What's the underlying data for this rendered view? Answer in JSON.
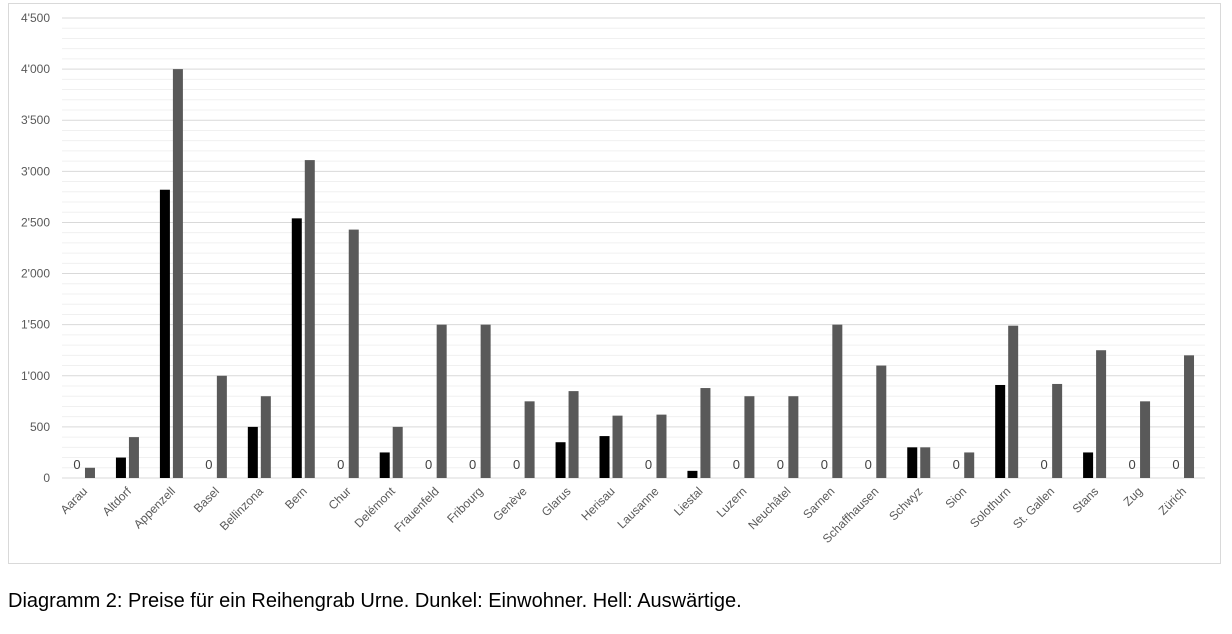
{
  "chart_data": {
    "type": "bar",
    "title": "",
    "xlabel": "",
    "ylabel": "",
    "ylim": [
      0,
      4500
    ],
    "y_major_step": 500,
    "y_minor_step": 100,
    "grid": true,
    "legend": "none",
    "y_tick_labels": [
      "0",
      "500",
      "1'000",
      "1'500",
      "2'000",
      "2'500",
      "3'000",
      "3'500",
      "4'000",
      "4'500"
    ],
    "categories": [
      "Aarau",
      "Altdorf",
      "Appenzell",
      "Basel",
      "Bellinzona",
      "Bern",
      "Chur",
      "Delémont",
      "Frauenfeld",
      "Fribourg",
      "Genève",
      "Glarus",
      "Herisau",
      "Lausanne",
      "Liestal",
      "Luzern",
      "Neuchâtel",
      "Sarnen",
      "Schaffhausen",
      "Schwyz",
      "Sion",
      "Solothurn",
      "St. Gallen",
      "Stans",
      "Zug",
      "Zürich"
    ],
    "series": [
      {
        "color": "#000000",
        "values": [
          0,
          200,
          2820,
          0,
          500,
          2540,
          0,
          250,
          0,
          0,
          0,
          350,
          410,
          0,
          70,
          0,
          0,
          0,
          0,
          300,
          0,
          910,
          0,
          250,
          0,
          0
        ]
      },
      {
        "color": "#595959",
        "values": [
          100,
          400,
          4000,
          1000,
          800,
          3110,
          2430,
          500,
          1500,
          1500,
          750,
          850,
          610,
          620,
          880,
          800,
          800,
          1500,
          1100,
          300,
          250,
          1490,
          920,
          1250,
          750,
          1200
        ]
      }
    ],
    "zero_label": "0"
  },
  "caption": "Diagramm 2: Preise für ein Reihengrab Urne. Dunkel: Einwohner. Hell: Auswärtige."
}
